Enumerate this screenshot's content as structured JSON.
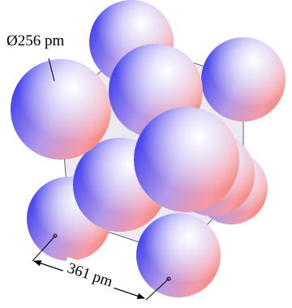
{
  "labels": {
    "diameter": "Ø256 pm",
    "edge": "361 pm"
  }
}
